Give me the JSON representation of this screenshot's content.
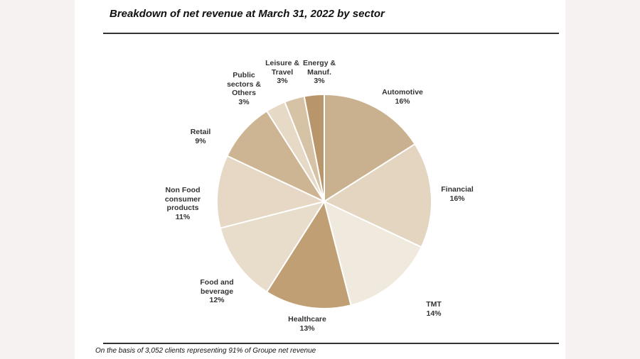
{
  "chart_data": {
    "type": "pie",
    "title": "Breakdown of net revenue at March 31, 2022 by sector",
    "footnote": "On the basis of 3,052 clients representing 91% of Groupe net revenue",
    "slices": [
      {
        "name": "Automotive",
        "value": 16,
        "label": "16%",
        "color": "#c9b08e"
      },
      {
        "name": "Financial",
        "value": 16,
        "label": "16%",
        "color": "#e3d5bf"
      },
      {
        "name": "TMT",
        "value": 14,
        "label": "14%",
        "color": "#f0e9de"
      },
      {
        "name": "Healthcare",
        "value": 13,
        "label": "13%",
        "color": "#bf9f73"
      },
      {
        "name": "Food and\nbeverage",
        "value": 12,
        "label": "12%",
        "color": "#e8dccb"
      },
      {
        "name": "Non Food\nconsumer\nproducts",
        "value": 11,
        "label": "11%",
        "color": "#e6d8c5"
      },
      {
        "name": "Retail",
        "value": 9,
        "label": "9%",
        "color": "#cdb493"
      },
      {
        "name": "Public\nsectors &\nOthers",
        "value": 3,
        "label": "3%",
        "color": "#e6d9c5"
      },
      {
        "name": "Leisure &\nTravel",
        "value": 3,
        "label": "3%",
        "color": "#d6c2a4"
      },
      {
        "name": "Energy  &\nManuf.",
        "value": 3,
        "label": "3%",
        "color": "#b8956a"
      }
    ]
  }
}
